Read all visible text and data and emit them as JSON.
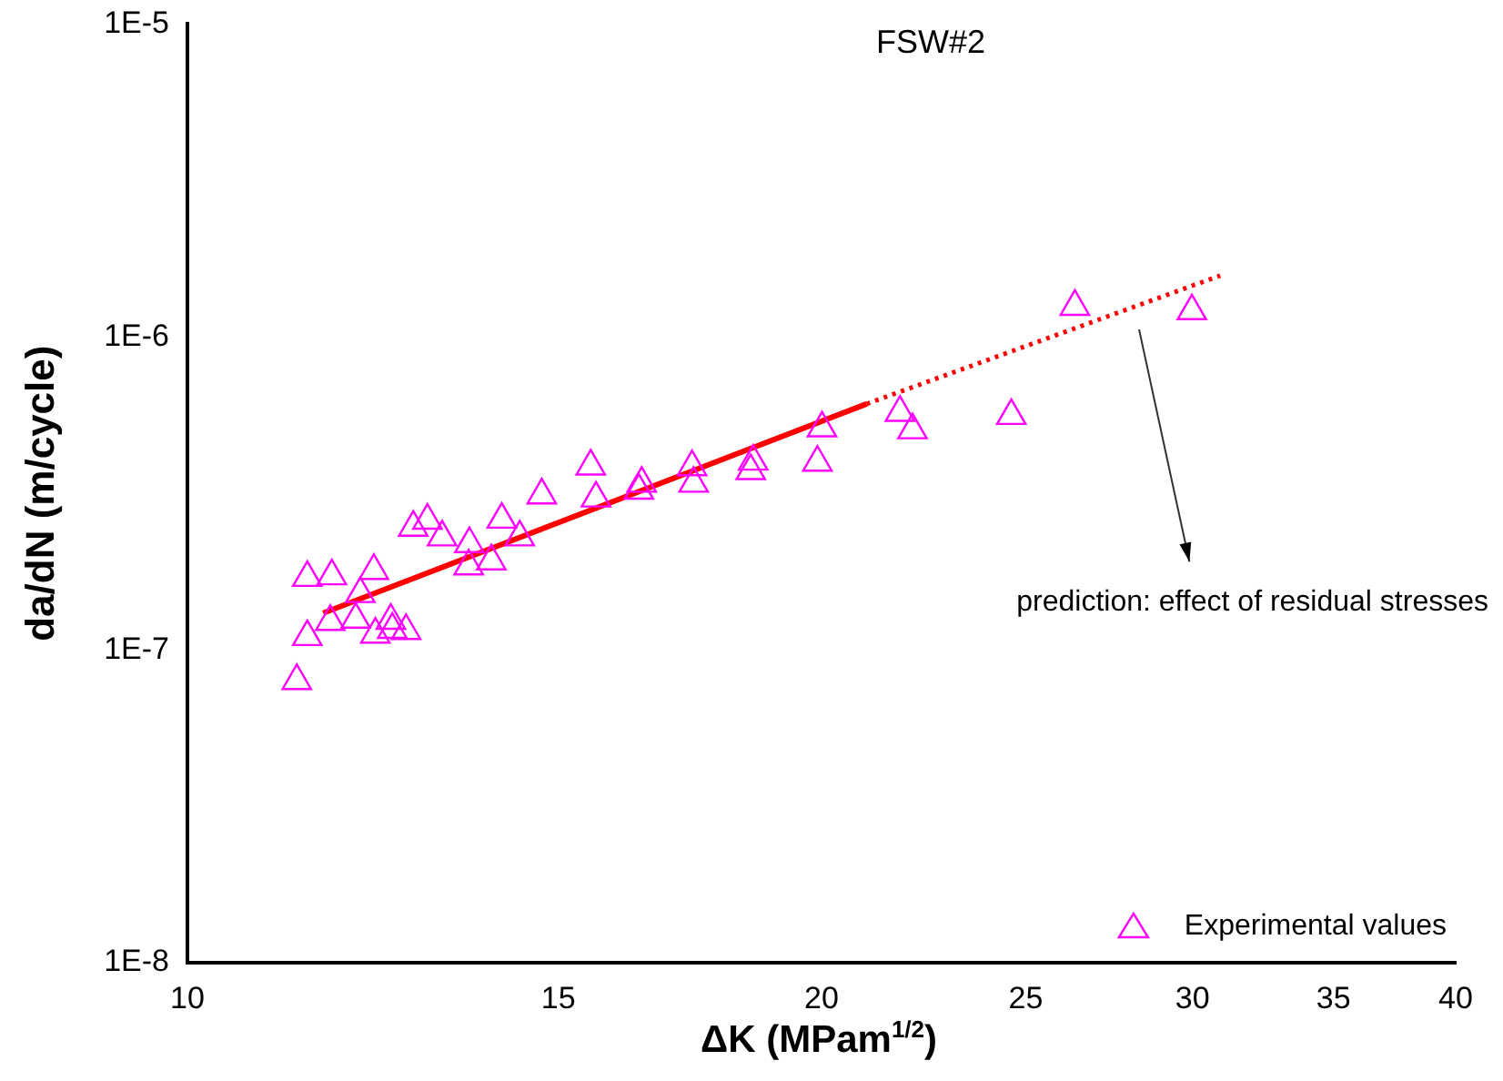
{
  "chart_data": {
    "type": "scatter",
    "title": "FSW#2",
    "xlabel": "ΔK (MPam$^{1/2}$)",
    "ylabel": "da/dN (m/cycle)",
    "log": "xy",
    "xlim": [
      10,
      40
    ],
    "xticks": [
      10,
      15,
      20,
      25,
      30,
      35,
      40
    ],
    "ylim": [
      1e-08,
      1e-05
    ],
    "yticks": [
      {
        "value": 1e-08,
        "label": "1E-8"
      },
      {
        "value": 1e-07,
        "label": "1E-7"
      },
      {
        "value": 1e-06,
        "label": "1E-6"
      },
      {
        "value": 1e-05,
        "label": "1E-5"
      }
    ],
    "grid": false,
    "legend": "bottom right",
    "annotations": [
      "prediction: effect of residual stresses"
    ],
    "series": [
      {
        "name": "Experimental values",
        "color": "#ff00ff",
        "marker": "triangle",
        "x": [
          11.27,
          11.4,
          11.4,
          11.71,
          11.69,
          12.02,
          12.08,
          12.26,
          12.28,
          12.49,
          12.51,
          12.7,
          12.8,
          13.0,
          13.21,
          13.61,
          13.6,
          13.94,
          14.1,
          14.38,
          14.73,
          15.54,
          15.63,
          16.38,
          16.43,
          17.36,
          17.39,
          18.51,
          18.56,
          20.01,
          19.91,
          21.79,
          22.09,
          24.61,
          26.38,
          29.98
        ],
        "values": [
          7.96e-08,
          1.1e-07,
          1.7e-07,
          1.72e-07,
          1.23e-07,
          1.25e-07,
          1.51e-07,
          1.79e-07,
          1.12e-07,
          1.24e-07,
          1.16e-07,
          1.15e-07,
          2.46e-07,
          2.59e-07,
          2.29e-07,
          2.18e-07,
          1.85e-07,
          1.92e-07,
          2.61e-07,
          2.29e-07,
          3.12e-07,
          3.86e-07,
          3.05e-07,
          3.23e-07,
          3.4e-07,
          3.84e-07,
          3.4e-07,
          3.73e-07,
          4e-07,
          5.11e-07,
          3.97e-07,
          5.73e-07,
          5.04e-07,
          5.6e-07,
          1.25e-06,
          1.21e-06
        ]
      },
      {
        "type": "line",
        "color": "#ff0000",
        "line_style": "solid",
        "marker": "none",
        "x": [
          11.6,
          21.01
        ],
        "values": [
          1.31e-07,
          6.11e-07
        ]
      },
      {
        "type": "line",
        "color": "#ff0000",
        "line_style": "dotted",
        "marker": "none",
        "x": [
          21.01,
          30.92
        ],
        "values": [
          6.11e-07,
          1.57e-06
        ]
      }
    ]
  }
}
